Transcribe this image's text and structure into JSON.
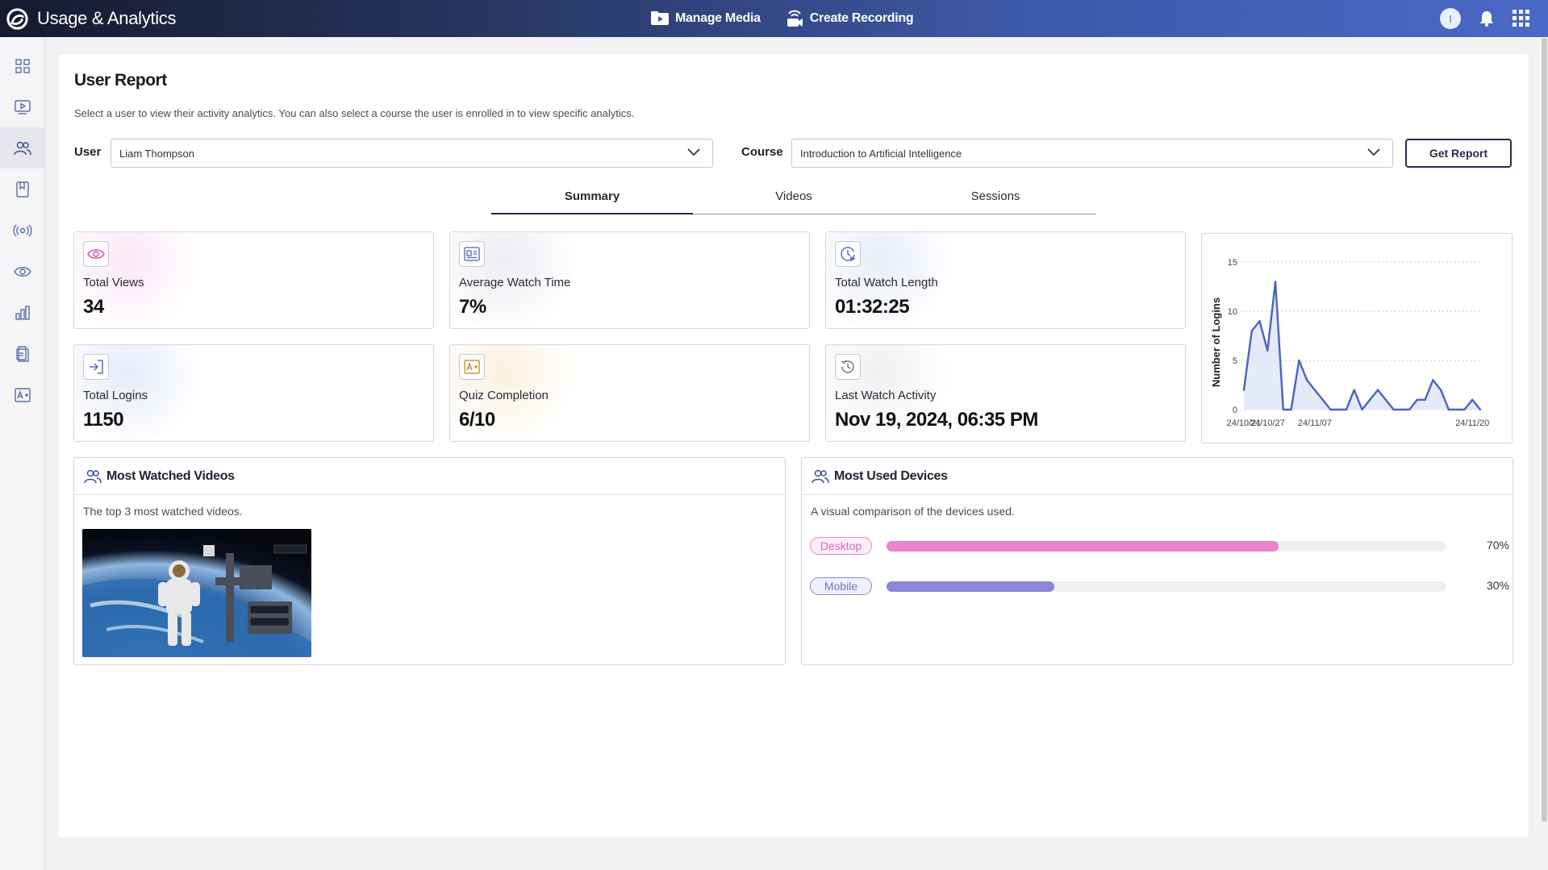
{
  "app": {
    "title": "Usage & Analytics"
  },
  "topnav": {
    "manage_media": "Manage Media",
    "create_recording": "Create Recording",
    "avatar_initial": "I"
  },
  "sidebar": {
    "items": [
      {
        "name": "dashboard",
        "icon": "grid-icon"
      },
      {
        "name": "media",
        "icon": "play-icon"
      },
      {
        "name": "users",
        "icon": "users-icon",
        "active": true
      },
      {
        "name": "courses",
        "icon": "book-icon"
      },
      {
        "name": "live",
        "icon": "broadcast-icon"
      },
      {
        "name": "views",
        "icon": "eye-icon"
      },
      {
        "name": "analytics",
        "icon": "bar-chart-icon"
      },
      {
        "name": "reports",
        "icon": "document-icon"
      },
      {
        "name": "quizzes",
        "icon": "grade-icon"
      }
    ]
  },
  "report": {
    "title": "User Report",
    "description": "Select a user to view their activity analytics. You can also select a course the user is enrolled in to view specific analytics.",
    "user_label": "User",
    "user_value": "Liam Thompson",
    "course_label": "Course",
    "course_value": "Introduction to Artificial Intelligence",
    "get_report": "Get Report"
  },
  "tabs": [
    {
      "label": "Summary",
      "active": true
    },
    {
      "label": "Videos"
    },
    {
      "label": "Sessions"
    }
  ],
  "stats": [
    {
      "label": "Total Views",
      "value": "34",
      "icon": "eye-icon",
      "accent": "#d94fc0"
    },
    {
      "label": "Average Watch Time",
      "value": "7%",
      "icon": "id-card-icon",
      "accent": "#6f7ab0"
    },
    {
      "label": "Total Watch Length",
      "value": "01:32:25",
      "icon": "clock-play-icon",
      "accent": "#5a6fb5"
    },
    {
      "label": "Total Logins",
      "value": "1150",
      "icon": "login-icon",
      "accent": "#5a6fb5"
    },
    {
      "label": "Quiz Completion",
      "value": "6/10",
      "icon": "grade-icon",
      "accent": "#c89a3a"
    },
    {
      "label": "Last Watch Activity",
      "value": "Nov 19, 2024, 06:35 PM",
      "icon": "history-icon",
      "accent": "#7a7a8a"
    }
  ],
  "chart_data": {
    "type": "area",
    "ylabel": "Number of Logins",
    "xlabel": "",
    "ylim": [
      0,
      15
    ],
    "yticks": [
      "0",
      "5",
      "10",
      "15"
    ],
    "xtick_labels": [
      "24/10/21",
      "24/10/27",
      "24/11/07",
      "24/11/20"
    ],
    "grid": true,
    "series": [
      {
        "values": [
          2,
          8,
          9,
          6,
          13,
          0,
          0,
          5,
          3,
          2,
          1,
          0,
          0,
          0,
          2,
          0,
          1,
          2,
          1,
          0,
          0,
          0,
          1,
          1,
          3,
          2,
          0,
          0,
          0,
          1,
          0
        ],
        "color": "#4a63c0"
      }
    ]
  },
  "most_watched": {
    "title": "Most Watched Videos",
    "description": "The top 3 most watched videos."
  },
  "devices": {
    "title": "Most Used Devices",
    "description": "A visual comparison of the devices used.",
    "items": [
      {
        "name": "Desktop",
        "percent": 70,
        "label": "70%",
        "color": "#e783cf",
        "pill_bg": "#fdeef9",
        "pill_color": "#d46bbd"
      },
      {
        "name": "Mobile",
        "percent": 30,
        "label": "30%",
        "color": "#8b86d8",
        "pill_bg": "#eef0fb",
        "pill_color": "#6f78b8"
      }
    ]
  }
}
